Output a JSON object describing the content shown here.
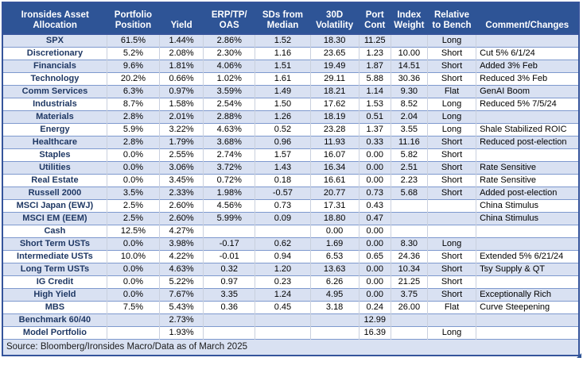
{
  "colors": {
    "header_bg": "#2E5496",
    "header_text": "#FFFFFF",
    "band_bg": "#D9E1F2",
    "label_text": "#1F3864",
    "outer_border": "#35549B"
  },
  "table": {
    "headers": [
      "Ironsides Asset\nAllocation",
      "Portfolio\nPosition",
      "Yield",
      "ERP/TP/\nOAS",
      "SDs from\nMedian",
      "30D\nVolatility",
      "Port\nCont",
      "Index\nWeight",
      "Relative\nto Bench",
      "Comment/Changes"
    ],
    "rows": [
      [
        "SPX",
        "61.5%",
        "1.44%",
        "2.86%",
        "1.52",
        "18.30",
        "11.25",
        "",
        "Long",
        ""
      ],
      [
        "Discretionary",
        "5.2%",
        "2.08%",
        "2.30%",
        "1.16",
        "23.65",
        "1.23",
        "10.00",
        "Short",
        "Cut 5% 6/1/24"
      ],
      [
        "Financials",
        "9.6%",
        "1.81%",
        "4.06%",
        "1.51",
        "19.49",
        "1.87",
        "14.51",
        "Short",
        "Added 3% Feb"
      ],
      [
        "Technology",
        "20.2%",
        "0.66%",
        "1.02%",
        "1.61",
        "29.11",
        "5.88",
        "30.36",
        "Short",
        "Reduced 3% Feb"
      ],
      [
        "Comm Services",
        "6.3%",
        "0.97%",
        "3.59%",
        "1.49",
        "18.21",
        "1.14",
        "9.30",
        "Flat",
        "GenAI Boom"
      ],
      [
        "Industrials",
        "8.7%",
        "1.58%",
        "2.54%",
        "1.50",
        "17.62",
        "1.53",
        "8.52",
        "Long",
        "Reduced 5% 7/5/24"
      ],
      [
        "Materials",
        "2.8%",
        "2.01%",
        "2.88%",
        "1.26",
        "18.19",
        "0.51",
        "2.04",
        "Long",
        ""
      ],
      [
        "Energy",
        "5.9%",
        "3.22%",
        "4.63%",
        "0.52",
        "23.28",
        "1.37",
        "3.55",
        "Long",
        "Shale Stabilized ROIC"
      ],
      [
        "Healthcare",
        "2.8%",
        "1.79%",
        "3.68%",
        "0.96",
        "11.93",
        "0.33",
        "11.16",
        "Short",
        "Reduced post-election"
      ],
      [
        "Staples",
        "0.0%",
        "2.55%",
        "2.74%",
        "1.57",
        "16.07",
        "0.00",
        "5.82",
        "Short",
        ""
      ],
      [
        "Utilities",
        "0.0%",
        "3.06%",
        "3.72%",
        "1.43",
        "16.34",
        "0.00",
        "2.51",
        "Short",
        "Rate Sensitive"
      ],
      [
        "Real Estate",
        "0.0%",
        "3.45%",
        "0.72%",
        "0.18",
        "16.61",
        "0.00",
        "2.23",
        "Short",
        "Rate Sensitive"
      ],
      [
        "Russell 2000",
        "3.5%",
        "2.33%",
        "1.98%",
        "-0.57",
        "20.77",
        "0.73",
        "5.68",
        "Short",
        "Added post-election"
      ],
      [
        "MSCI Japan (EWJ)",
        "2.5%",
        "2.60%",
        "4.56%",
        "0.73",
        "17.31",
        "0.43",
        "",
        "",
        "China Stimulus"
      ],
      [
        "MSCI EM (EEM)",
        "2.5%",
        "2.60%",
        "5.99%",
        "0.09",
        "18.80",
        "0.47",
        "",
        "",
        "China Stimulus"
      ],
      [
        "Cash",
        "12.5%",
        "4.27%",
        "",
        "",
        "0.00",
        "0.00",
        "",
        "",
        ""
      ],
      [
        "Short Term USTs",
        "0.0%",
        "3.98%",
        "-0.17",
        "0.62",
        "1.69",
        "0.00",
        "8.30",
        "Long",
        ""
      ],
      [
        "Intermediate USTs",
        "10.0%",
        "4.22%",
        "-0.01",
        "0.94",
        "6.53",
        "0.65",
        "24.36",
        "Short",
        "Extended 5% 6/21/24"
      ],
      [
        "Long Term USTs",
        "0.0%",
        "4.63%",
        "0.32",
        "1.20",
        "13.63",
        "0.00",
        "10.34",
        "Short",
        "Tsy Supply & QT"
      ],
      [
        "IG Credit",
        "0.0%",
        "5.22%",
        "0.97",
        "0.23",
        "6.26",
        "0.00",
        "21.25",
        "Short",
        ""
      ],
      [
        "High Yield",
        "0.0%",
        "7.67%",
        "3.35",
        "1.24",
        "4.95",
        "0.00",
        "3.75",
        "Short",
        "Exceptionally Rich"
      ],
      [
        "MBS",
        "7.5%",
        "5.43%",
        "0.36",
        "0.45",
        "3.18",
        "0.24",
        "26.00",
        "Flat",
        "Curve Steepening"
      ],
      [
        "Benchmark 60/40",
        "",
        "2.73%",
        "",
        "",
        "",
        "12.99",
        "",
        "",
        ""
      ],
      [
        "Model Portfolio",
        "",
        "1.93%",
        "",
        "",
        "",
        "16.39",
        "",
        "Long",
        ""
      ]
    ],
    "source": "Source: Bloomberg/Ironsides Macro/Data as of March 2025"
  }
}
